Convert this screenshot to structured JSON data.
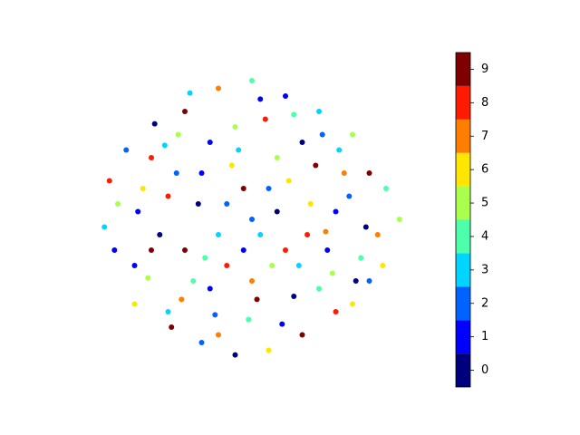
{
  "chart_data": {
    "type": "scatter",
    "xlim": [
      -100,
      100
    ],
    "ylim": [
      -100,
      100
    ],
    "x": [
      -80,
      -70,
      -60,
      -50,
      -40,
      -30,
      -20,
      -10,
      0,
      10,
      20,
      30,
      40,
      50,
      60,
      70,
      80,
      88,
      75,
      -88,
      -65,
      -55,
      -45,
      -35,
      -25,
      -15,
      -5,
      5,
      15,
      25,
      35,
      45,
      55,
      65,
      -75,
      -70,
      -58,
      -48,
      -30,
      -20,
      -10,
      0,
      10,
      20,
      30,
      40,
      50,
      60,
      70,
      -85,
      -82,
      -62,
      -52,
      -42,
      -32,
      -22,
      -12,
      -2,
      8,
      18,
      28,
      38,
      48,
      58,
      68,
      78,
      -37,
      -20,
      5,
      25,
      42,
      -68,
      -40,
      -15,
      12,
      33,
      52,
      -5,
      15,
      -28,
      -50,
      0,
      -8,
      22,
      -60,
      44,
      62,
      -44,
      -25,
      3
    ],
    "y": [
      10,
      -30,
      40,
      -60,
      70,
      -80,
      85,
      -88,
      90,
      -85,
      80,
      -75,
      70,
      -60,
      55,
      -40,
      20,
      0,
      -10,
      -5,
      20,
      -10,
      30,
      -40,
      50,
      -30,
      20,
      -10,
      40,
      -50,
      10,
      -20,
      30,
      -25,
      45,
      -55,
      62,
      -70,
      30,
      -10,
      60,
      -40,
      20,
      -20,
      50,
      -45,
      5,
      -55,
      30,
      25,
      -20,
      -38,
      48,
      -52,
      10,
      -62,
      35,
      -65,
      65,
      -68,
      -30,
      35,
      -35,
      15,
      -5,
      -30,
      82,
      -75,
      78,
      68,
      55,
      5,
      -20,
      10,
      -30,
      -10,
      45,
      -20,
      5,
      -25,
      15,
      0,
      45,
      25,
      -20,
      -8,
      -40,
      55,
      -45,
      -52
    ],
    "classes": [
      5,
      1,
      8,
      3,
      9,
      2,
      7,
      0,
      4,
      6,
      1,
      9,
      3,
      8,
      5,
      2,
      4,
      5,
      7,
      3,
      6,
      0,
      2,
      4,
      1,
      8,
      9,
      3,
      5,
      0,
      6,
      1,
      7,
      4,
      2,
      6,
      0,
      9,
      1,
      3,
      5,
      7,
      2,
      8,
      0,
      4,
      1,
      6,
      9,
      8,
      1,
      5,
      3,
      7,
      0,
      2,
      6,
      4,
      8,
      1,
      3,
      9,
      5,
      2,
      0,
      6,
      3,
      7,
      1,
      4,
      2,
      1,
      9,
      2,
      5,
      8,
      3,
      1,
      0,
      4,
      8,
      2,
      3,
      6,
      9,
      7,
      0,
      5,
      1,
      9
    ],
    "colors": [
      "#00007f",
      "#0000ff",
      "#0063ff",
      "#00d5ff",
      "#4dffaa",
      "#aaff4d",
      "#ffe600",
      "#ff7e00",
      "#ff1a00",
      "#7f0000"
    ],
    "clim": [
      -0.5,
      9.5
    ],
    "colorbar_ticks": [
      0,
      1,
      2,
      3,
      4,
      5,
      6,
      7,
      8,
      9
    ]
  }
}
